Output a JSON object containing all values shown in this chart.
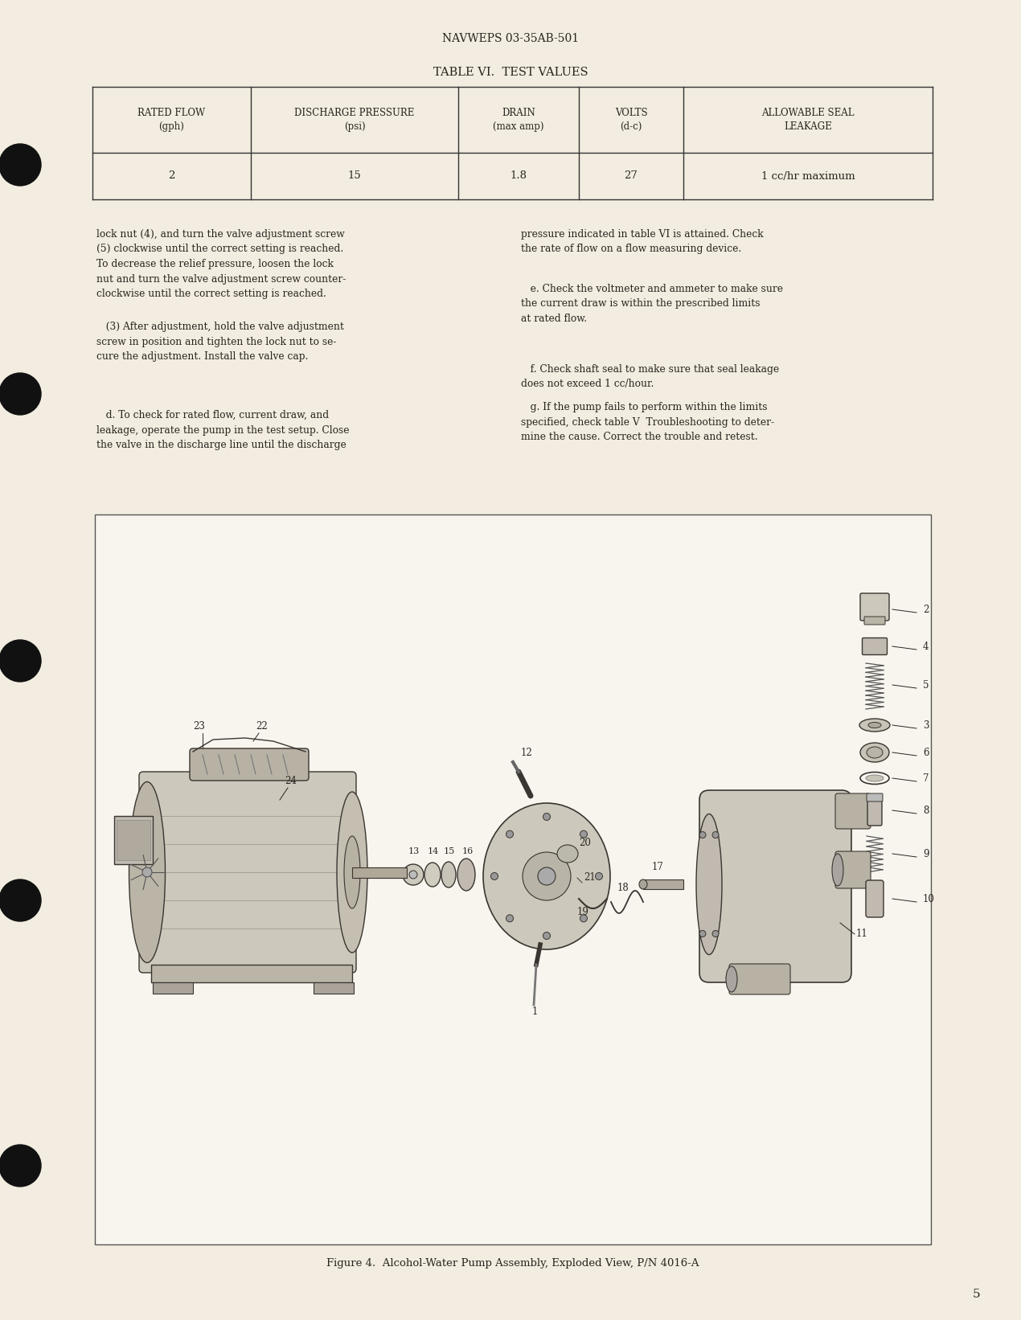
{
  "page_bg": "#f2ede0",
  "header_text": "NAVWEPS 03-35AB-501",
  "table_title": "TABLE VI.  TEST VALUES",
  "table_headers": [
    "RATED FLOW\n(gph)",
    "DISCHARGE PRESSURE\n(psi)",
    "DRAIN\n(max amp)",
    "VOLTS\n(d-c)",
    "ALLOWABLE SEAL\nLEAKAGE"
  ],
  "table_row": [
    "2",
    "15",
    "1.8",
    "27",
    "1 cc/hr maximum"
  ],
  "para_left_1": "lock nut (4), and turn the valve adjustment screw\n(5) clockwise until the correct setting is reached.\nTo decrease the relief pressure, loosen the lock\nnut and turn the valve adjustment screw counter-\nclockwise until the correct setting is reached.",
  "para_left_2": "   (3) After adjustment, hold the valve adjustment\nscrew in position and tighten the lock nut to se-\ncure the adjustment. Install the valve cap.",
  "para_left_3": "   d. To check for rated flow, current draw, and\nleakage, operate the pump in the test setup. Close\nthe valve in the discharge line until the discharge",
  "para_right_1": "pressure indicated in table VI is attained. Check\nthe rate of flow on a flow measuring device.",
  "para_right_2": "   e. Check the voltmeter and ammeter to make sure\nthe current draw is within the prescribed limits\nat rated flow.",
  "para_right_3": "   f. Check shaft seal to make sure that seal leakage\ndoes not exceed 1 cc/hour.",
  "para_right_4": "   g. If the pump fails to perform within the limits\nspecified, check table V  Troubleshooting to deter-\nmine the cause. Correct the trouble and retest.",
  "figure_caption": "Figure 4.  Alcohol-Water Pump Assembly, Exploded View, P/N 4016-A",
  "page_number": "5",
  "text_color": "#2a2420",
  "line_color": "#333333",
  "fig_bg": "#f8f5ee"
}
